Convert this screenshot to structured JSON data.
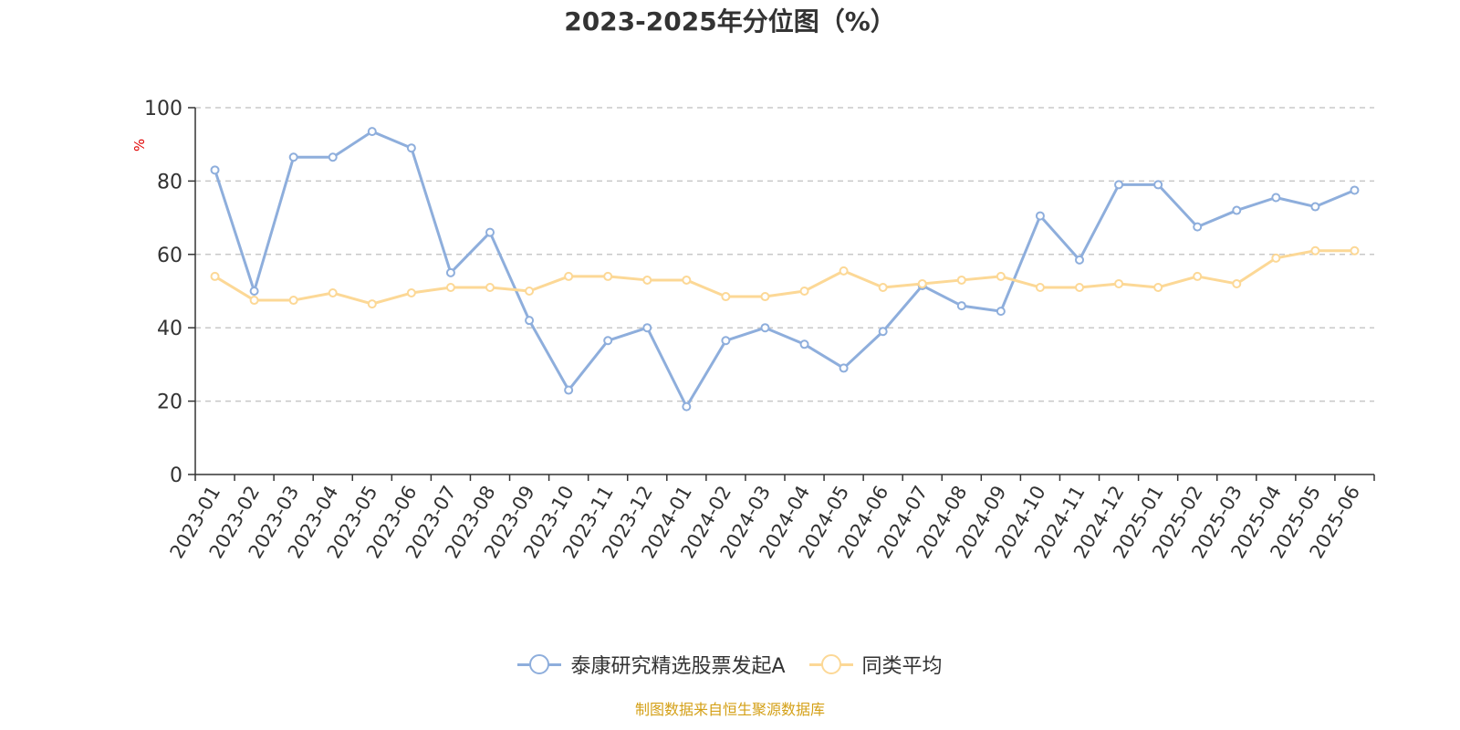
{
  "chart_data": {
    "type": "line",
    "title": "2023-2025年分位图（%）",
    "ylabel": "%",
    "xlabel": "",
    "ylim": [
      0,
      100
    ],
    "yticks": [
      0,
      20,
      40,
      60,
      80,
      100
    ],
    "grid": true,
    "legend_position": "bottom",
    "categories": [
      "2023-01",
      "2023-02",
      "2023-03",
      "2023-04",
      "2023-05",
      "2023-06",
      "2023-07",
      "2023-08",
      "2023-09",
      "2023-10",
      "2023-11",
      "2023-12",
      "2024-01",
      "2024-02",
      "2024-03",
      "2024-04",
      "2024-05",
      "2024-06",
      "2024-07",
      "2024-08",
      "2024-09",
      "2024-10",
      "2024-11",
      "2024-12",
      "2025-01",
      "2025-02",
      "2025-03",
      "2025-04",
      "2025-05",
      "2025-06"
    ],
    "series": [
      {
        "name": "泰康研究精选股票发起A",
        "color": "#8eaedc",
        "values": [
          83,
          50,
          86.5,
          86.5,
          93.5,
          89,
          55,
          66,
          42,
          23,
          36.5,
          40,
          18.5,
          36.5,
          40,
          35.5,
          29,
          39,
          51.5,
          46,
          44.5,
          70.5,
          58.5,
          79,
          79,
          67.5,
          72,
          75.5,
          73,
          77.5
        ]
      },
      {
        "name": "同类平均",
        "color": "#fcd896",
        "values": [
          54,
          47.5,
          47.5,
          49.5,
          46.5,
          49.5,
          51,
          51,
          50,
          54,
          54,
          53,
          53,
          48.5,
          48.5,
          50,
          55.5,
          51,
          52,
          53,
          54,
          51,
          51,
          52,
          51,
          54,
          52,
          59,
          61,
          61
        ]
      }
    ]
  },
  "source": "制图数据来自恒生聚源数据库"
}
